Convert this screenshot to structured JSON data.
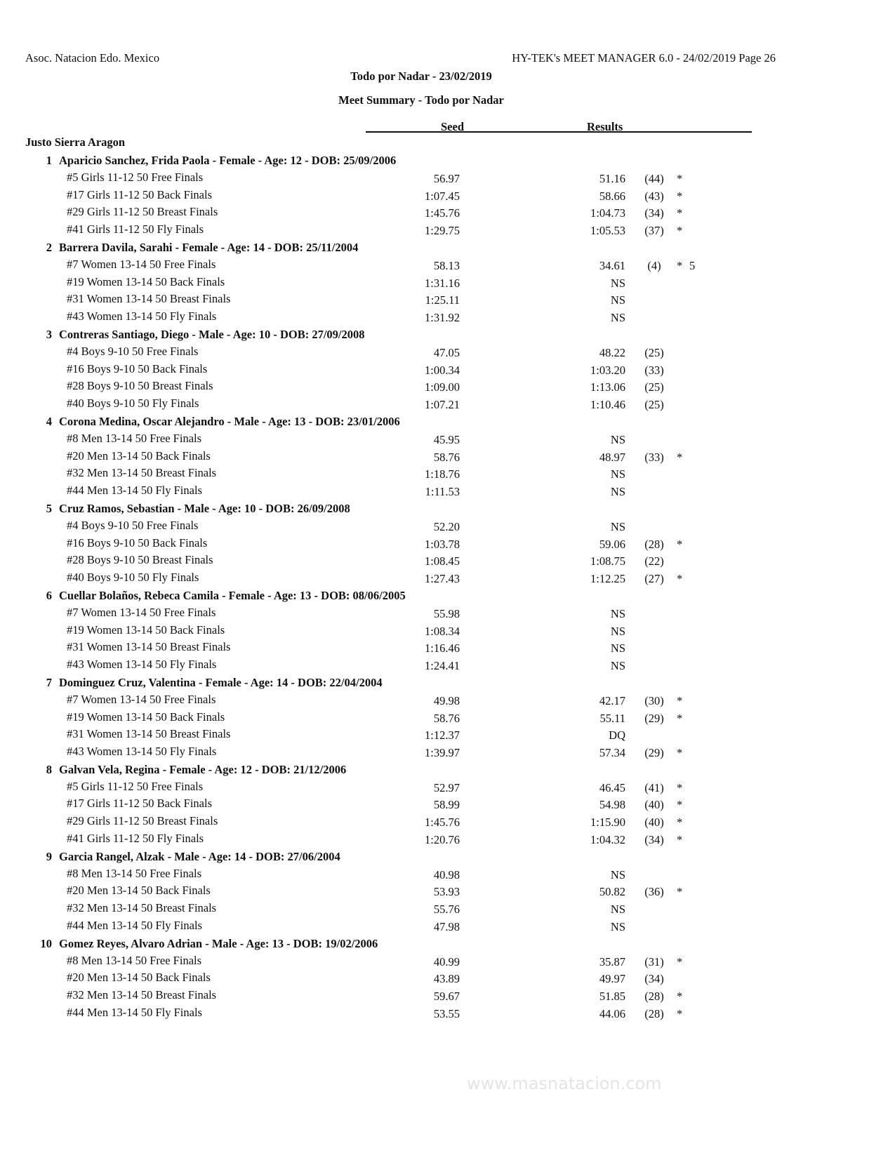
{
  "header": {
    "organization": "Asoc. Natacion Edo. Mexico",
    "program": "HY-TEK's MEET MANAGER 6.0 - 24/02/2019  Page 26",
    "meet_title": "Todo por Nadar - 23/02/2019",
    "report_title": "Meet Summary - Todo por Nadar"
  },
  "columns": {
    "seed": "Seed",
    "results": "Results"
  },
  "team": "Justo Sierra Aragon",
  "watermark": "www.masnatacion.com",
  "swimmers": [
    {
      "num": "1",
      "name": "Aparicio Sanchez, Frida Paola - Female - Age: 12 - DOB: 25/09/2006",
      "entries": [
        {
          "event": "#5 Girls 11-12 50 Free Finals",
          "seed": "56.97",
          "result": "51.16",
          "place": "(44)",
          "star": "*",
          "points": ""
        },
        {
          "event": "#17 Girls 11-12 50 Back Finals",
          "seed": "1:07.45",
          "result": "58.66",
          "place": "(43)",
          "star": "*",
          "points": ""
        },
        {
          "event": "#29 Girls 11-12 50 Breast Finals",
          "seed": "1:45.76",
          "result": "1:04.73",
          "place": "(34)",
          "star": "*",
          "points": ""
        },
        {
          "event": "#41 Girls 11-12 50 Fly Finals",
          "seed": "1:29.75",
          "result": "1:05.53",
          "place": "(37)",
          "star": "*",
          "points": ""
        }
      ]
    },
    {
      "num": "2",
      "name": "Barrera Davila, Sarahi - Female - Age: 14 - DOB: 25/11/2004",
      "entries": [
        {
          "event": "#7 Women 13-14 50 Free Finals",
          "seed": "58.13",
          "result": "34.61",
          "place": "(4)",
          "star": "*",
          "points": "5"
        },
        {
          "event": "#19 Women 13-14 50 Back Finals",
          "seed": "1:31.16",
          "result": "NS",
          "place": "",
          "star": "",
          "points": ""
        },
        {
          "event": "#31 Women 13-14 50 Breast Finals",
          "seed": "1:25.11",
          "result": "NS",
          "place": "",
          "star": "",
          "points": ""
        },
        {
          "event": "#43 Women 13-14 50 Fly Finals",
          "seed": "1:31.92",
          "result": "NS",
          "place": "",
          "star": "",
          "points": ""
        }
      ]
    },
    {
      "num": "3",
      "name": "Contreras Santiago, Diego - Male - Age: 10 - DOB: 27/09/2008",
      "entries": [
        {
          "event": "#4 Boys 9-10 50 Free Finals",
          "seed": "47.05",
          "result": "48.22",
          "place": "(25)",
          "star": "",
          "points": ""
        },
        {
          "event": "#16 Boys 9-10 50 Back Finals",
          "seed": "1:00.34",
          "result": "1:03.20",
          "place": "(33)",
          "star": "",
          "points": ""
        },
        {
          "event": "#28 Boys 9-10 50 Breast Finals",
          "seed": "1:09.00",
          "result": "1:13.06",
          "place": "(25)",
          "star": "",
          "points": ""
        },
        {
          "event": "#40 Boys 9-10 50 Fly Finals",
          "seed": "1:07.21",
          "result": "1:10.46",
          "place": "(25)",
          "star": "",
          "points": ""
        }
      ]
    },
    {
      "num": "4",
      "name": "Corona Medina, Oscar Alejandro - Male - Age: 13 - DOB: 23/01/2006",
      "entries": [
        {
          "event": "#8 Men 13-14 50 Free Finals",
          "seed": "45.95",
          "result": "NS",
          "place": "",
          "star": "",
          "points": ""
        },
        {
          "event": "#20 Men 13-14 50 Back Finals",
          "seed": "58.76",
          "result": "48.97",
          "place": "(33)",
          "star": "*",
          "points": ""
        },
        {
          "event": "#32 Men 13-14 50 Breast Finals",
          "seed": "1:18.76",
          "result": "NS",
          "place": "",
          "star": "",
          "points": ""
        },
        {
          "event": "#44 Men 13-14 50 Fly Finals",
          "seed": "1:11.53",
          "result": "NS",
          "place": "",
          "star": "",
          "points": ""
        }
      ]
    },
    {
      "num": "5",
      "name": "Cruz Ramos, Sebastian - Male - Age: 10 - DOB: 26/09/2008",
      "entries": [
        {
          "event": "#4 Boys 9-10 50 Free Finals",
          "seed": "52.20",
          "result": "NS",
          "place": "",
          "star": "",
          "points": ""
        },
        {
          "event": "#16 Boys 9-10 50 Back Finals",
          "seed": "1:03.78",
          "result": "59.06",
          "place": "(28)",
          "star": "*",
          "points": ""
        },
        {
          "event": "#28 Boys 9-10 50 Breast Finals",
          "seed": "1:08.45",
          "result": "1:08.75",
          "place": "(22)",
          "star": "",
          "points": ""
        },
        {
          "event": "#40 Boys 9-10 50 Fly Finals",
          "seed": "1:27.43",
          "result": "1:12.25",
          "place": "(27)",
          "star": "*",
          "points": ""
        }
      ]
    },
    {
      "num": "6",
      "name": "Cuellar Bolaños, Rebeca Camila - Female - Age: 13 - DOB: 08/06/2005",
      "entries": [
        {
          "event": "#7 Women 13-14 50 Free Finals",
          "seed": "55.98",
          "result": "NS",
          "place": "",
          "star": "",
          "points": ""
        },
        {
          "event": "#19 Women 13-14 50 Back Finals",
          "seed": "1:08.34",
          "result": "NS",
          "place": "",
          "star": "",
          "points": ""
        },
        {
          "event": "#31 Women 13-14 50 Breast Finals",
          "seed": "1:16.46",
          "result": "NS",
          "place": "",
          "star": "",
          "points": ""
        },
        {
          "event": "#43 Women 13-14 50 Fly Finals",
          "seed": "1:24.41",
          "result": "NS",
          "place": "",
          "star": "",
          "points": ""
        }
      ]
    },
    {
      "num": "7",
      "name": "Dominguez Cruz, Valentina - Female - Age: 14 - DOB: 22/04/2004",
      "entries": [
        {
          "event": "#7 Women 13-14 50 Free Finals",
          "seed": "49.98",
          "result": "42.17",
          "place": "(30)",
          "star": "*",
          "points": ""
        },
        {
          "event": "#19 Women 13-14 50 Back Finals",
          "seed": "58.76",
          "result": "55.11",
          "place": "(29)",
          "star": "*",
          "points": ""
        },
        {
          "event": "#31 Women 13-14 50 Breast Finals",
          "seed": "1:12.37",
          "result": "DQ",
          "place": "",
          "star": "",
          "points": ""
        },
        {
          "event": "#43 Women 13-14 50 Fly Finals",
          "seed": "1:39.97",
          "result": "57.34",
          "place": "(29)",
          "star": "*",
          "points": ""
        }
      ]
    },
    {
      "num": "8",
      "name": "Galvan Vela, Regina - Female - Age: 12 - DOB: 21/12/2006",
      "entries": [
        {
          "event": "#5 Girls 11-12 50 Free Finals",
          "seed": "52.97",
          "result": "46.45",
          "place": "(41)",
          "star": "*",
          "points": ""
        },
        {
          "event": "#17 Girls 11-12 50 Back Finals",
          "seed": "58.99",
          "result": "54.98",
          "place": "(40)",
          "star": "*",
          "points": ""
        },
        {
          "event": "#29 Girls 11-12 50 Breast Finals",
          "seed": "1:45.76",
          "result": "1:15.90",
          "place": "(40)",
          "star": "*",
          "points": ""
        },
        {
          "event": "#41 Girls 11-12 50 Fly Finals",
          "seed": "1:20.76",
          "result": "1:04.32",
          "place": "(34)",
          "star": "*",
          "points": ""
        }
      ]
    },
    {
      "num": "9",
      "name": "Garcia Rangel, Alzak - Male - Age: 14 - DOB: 27/06/2004",
      "entries": [
        {
          "event": "#8 Men 13-14 50 Free Finals",
          "seed": "40.98",
          "result": "NS",
          "place": "",
          "star": "",
          "points": ""
        },
        {
          "event": "#20 Men 13-14 50 Back Finals",
          "seed": "53.93",
          "result": "50.82",
          "place": "(36)",
          "star": "*",
          "points": ""
        },
        {
          "event": "#32 Men 13-14 50 Breast Finals",
          "seed": "55.76",
          "result": "NS",
          "place": "",
          "star": "",
          "points": ""
        },
        {
          "event": "#44 Men 13-14 50 Fly Finals",
          "seed": "47.98",
          "result": "NS",
          "place": "",
          "star": "",
          "points": ""
        }
      ]
    },
    {
      "num": "10",
      "name": "Gomez Reyes, Alvaro Adrian - Male - Age: 13 - DOB: 19/02/2006",
      "entries": [
        {
          "event": "#8 Men 13-14 50 Free Finals",
          "seed": "40.99",
          "result": "35.87",
          "place": "(31)",
          "star": "*",
          "points": ""
        },
        {
          "event": "#20 Men 13-14 50 Back Finals",
          "seed": "43.89",
          "result": "49.97",
          "place": "(34)",
          "star": "",
          "points": ""
        },
        {
          "event": "#32 Men 13-14 50 Breast Finals",
          "seed": "59.67",
          "result": "51.85",
          "place": "(28)",
          "star": "*",
          "points": ""
        },
        {
          "event": "#44 Men 13-14 50 Fly Finals",
          "seed": "53.55",
          "result": "44.06",
          "place": "(28)",
          "star": "*",
          "points": ""
        }
      ]
    }
  ]
}
